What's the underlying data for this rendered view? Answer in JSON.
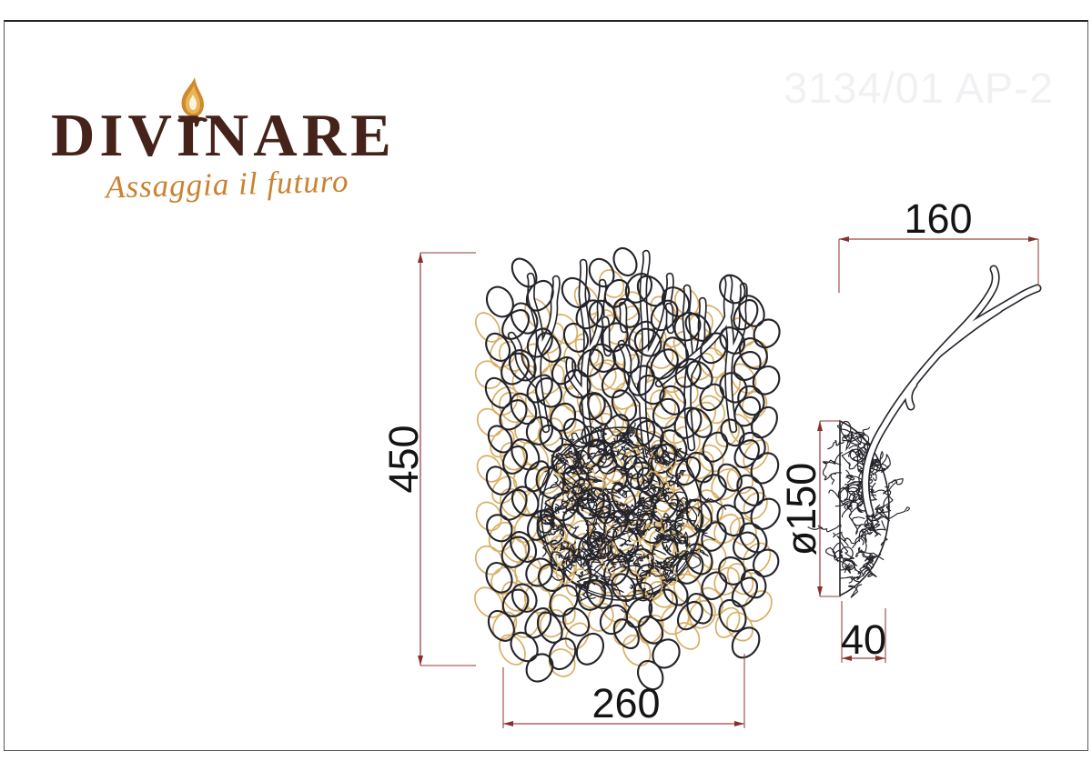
{
  "sheet": {
    "watermark": "3134/01 AP-2"
  },
  "logo": {
    "brand": "DIVINARE",
    "tagline": "Assaggia il futuro"
  },
  "drawing": {
    "front_view": {
      "height_mm": "450",
      "width_mm": "260"
    },
    "side_view": {
      "projection_mm": "160",
      "backplate_diameter_mm": "ø150",
      "backplate_depth_mm": "40"
    },
    "colors": {
      "dimension_lines": "#9b4743",
      "sketch_ink": "#23232a",
      "sketch_accent": "#d9af66",
      "logo_brown": "#45221a",
      "logo_orange": "#ca8230",
      "watermark_gray": "#f1f1f3"
    }
  }
}
